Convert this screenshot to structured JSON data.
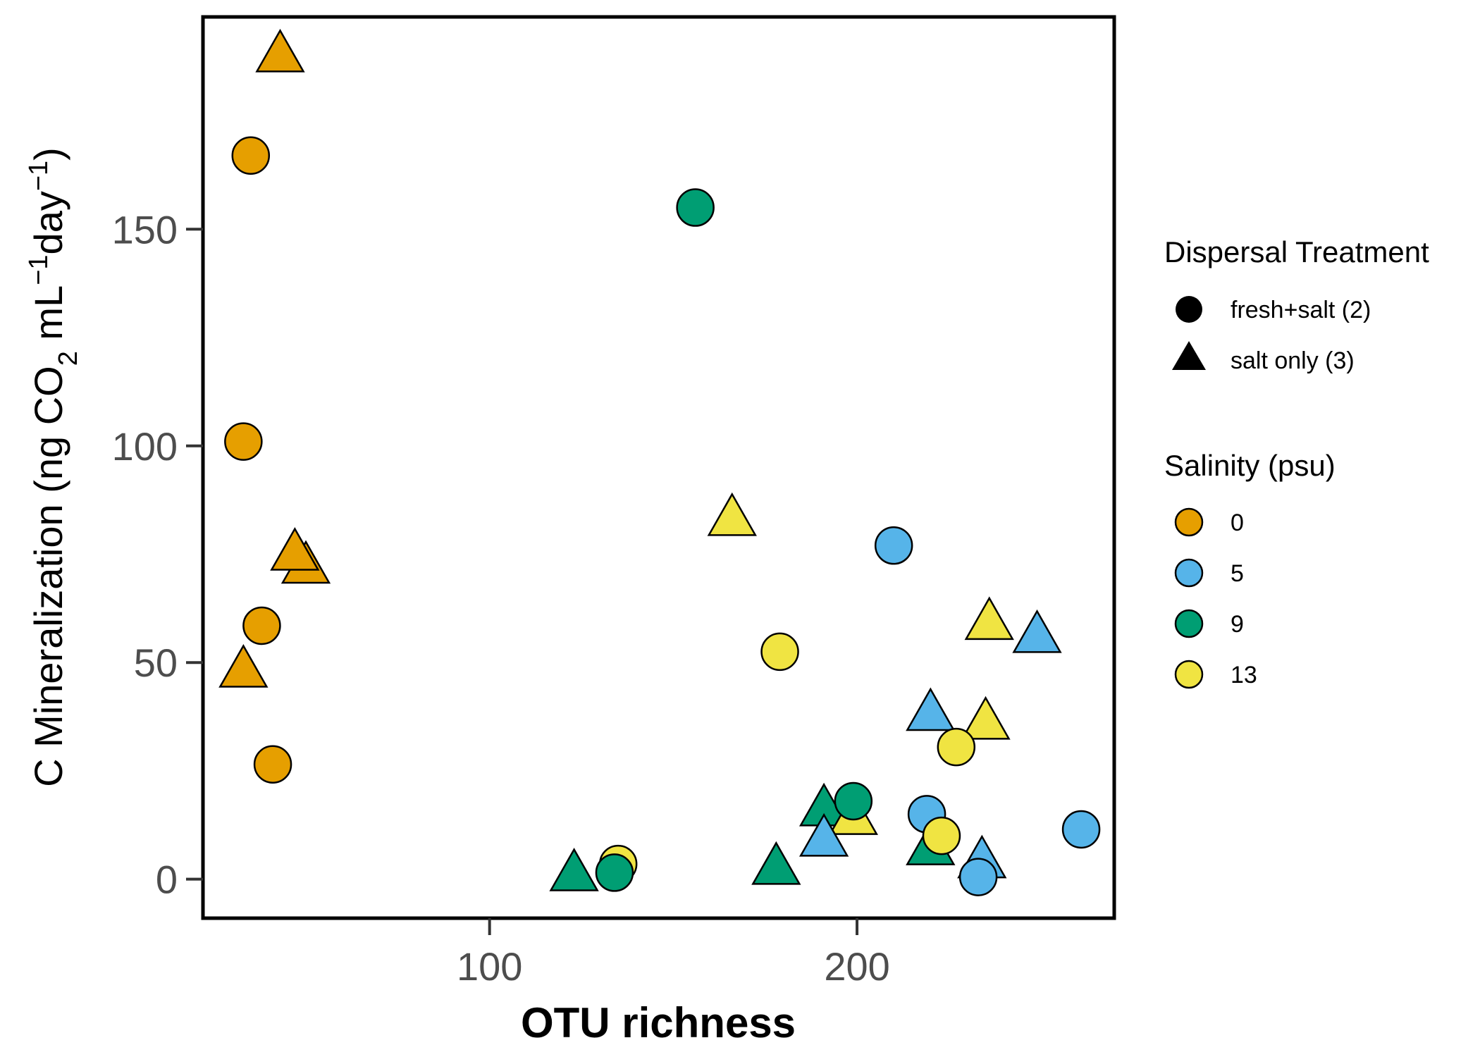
{
  "chart_data": {
    "type": "scatter",
    "title": "",
    "xlabel": "OTU richness",
    "ylabel": {
      "prefix": "C Mineralization (ng CO",
      "sub": "2",
      "mid1": " mL",
      "sup1": "−1",
      "mid2": "day",
      "sup2": "−1",
      "suffix": ")"
    },
    "xlim": [
      22,
      270
    ],
    "ylim": [
      -9,
      199
    ],
    "xticks": [
      100,
      200
    ],
    "yticks": [
      0,
      50,
      100,
      150
    ],
    "grid": false,
    "legend_position": "right",
    "legend": {
      "shape_title": "Dispersal Treatment",
      "shapes": [
        {
          "key": "circle",
          "label": "fresh+salt (2)"
        },
        {
          "key": "triangle",
          "label": "salt only (3)"
        }
      ],
      "color_title": "Salinity (psu)",
      "colors": [
        {
          "key": "0",
          "label": "0",
          "color": "#E69F00"
        },
        {
          "key": "5",
          "label": "5",
          "color": "#56B4E9"
        },
        {
          "key": "9",
          "label": "9",
          "color": "#009E73"
        },
        {
          "key": "13",
          "label": "13",
          "color": "#F0E442"
        }
      ]
    },
    "points": [
      {
        "x": 43,
        "y": 190,
        "shape": "triangle",
        "salinity": "0"
      },
      {
        "x": 35,
        "y": 167,
        "shape": "circle",
        "salinity": "0"
      },
      {
        "x": 33,
        "y": 101,
        "shape": "circle",
        "salinity": "0"
      },
      {
        "x": 50,
        "y": 72,
        "shape": "triangle",
        "salinity": "0"
      },
      {
        "x": 47,
        "y": 75,
        "shape": "triangle",
        "salinity": "0"
      },
      {
        "x": 38,
        "y": 58.5,
        "shape": "circle",
        "salinity": "0"
      },
      {
        "x": 33,
        "y": 48,
        "shape": "triangle",
        "salinity": "0"
      },
      {
        "x": 41,
        "y": 26.5,
        "shape": "circle",
        "salinity": "0"
      },
      {
        "x": 156,
        "y": 155,
        "shape": "circle",
        "salinity": "9"
      },
      {
        "x": 166,
        "y": 83,
        "shape": "triangle",
        "salinity": "13"
      },
      {
        "x": 210,
        "y": 77,
        "shape": "circle",
        "salinity": "5"
      },
      {
        "x": 179,
        "y": 52.5,
        "shape": "circle",
        "salinity": "13"
      },
      {
        "x": 236,
        "y": 59,
        "shape": "triangle",
        "salinity": "13"
      },
      {
        "x": 249,
        "y": 56,
        "shape": "triangle",
        "salinity": "5"
      },
      {
        "x": 220,
        "y": 38,
        "shape": "triangle",
        "salinity": "5"
      },
      {
        "x": 235,
        "y": 36,
        "shape": "triangle",
        "salinity": "13"
      },
      {
        "x": 227,
        "y": 30.5,
        "shape": "circle",
        "salinity": "13"
      },
      {
        "x": 191,
        "y": 16,
        "shape": "triangle",
        "salinity": "9"
      },
      {
        "x": 199,
        "y": 14,
        "shape": "triangle",
        "salinity": "13"
      },
      {
        "x": 199,
        "y": 18,
        "shape": "circle",
        "salinity": "9"
      },
      {
        "x": 191,
        "y": 9,
        "shape": "triangle",
        "salinity": "5"
      },
      {
        "x": 219,
        "y": 15,
        "shape": "circle",
        "salinity": "5"
      },
      {
        "x": 220,
        "y": 7,
        "shape": "triangle",
        "salinity": "9"
      },
      {
        "x": 223,
        "y": 10,
        "shape": "circle",
        "salinity": "13"
      },
      {
        "x": 234,
        "y": 4,
        "shape": "triangle",
        "salinity": "5"
      },
      {
        "x": 233,
        "y": 0.5,
        "shape": "circle",
        "salinity": "5"
      },
      {
        "x": 261,
        "y": 11.5,
        "shape": "circle",
        "salinity": "5"
      },
      {
        "x": 123,
        "y": 1,
        "shape": "triangle",
        "salinity": "9"
      },
      {
        "x": 135,
        "y": 3.5,
        "shape": "circle",
        "salinity": "13"
      },
      {
        "x": 134,
        "y": 1.5,
        "shape": "circle",
        "salinity": "9"
      },
      {
        "x": 178,
        "y": 2.5,
        "shape": "triangle",
        "salinity": "9"
      }
    ]
  }
}
